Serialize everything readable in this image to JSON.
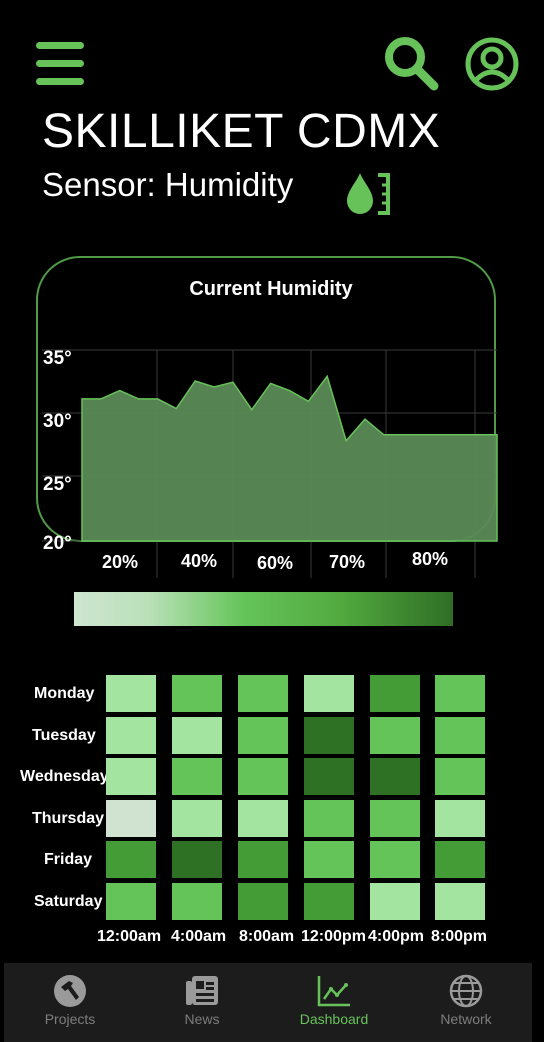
{
  "header": {
    "title": "SKILLIKET CDMX",
    "subtitle": "Sensor: Humidity",
    "menu_icon": "hamburger-icon",
    "search_icon": "search-icon",
    "profile_icon": "profile-icon",
    "sensor_icon": "humidity-drop-icon",
    "accent_color": "#67c25a"
  },
  "chart_data": {
    "type": "area",
    "title": "Current Humidity",
    "x_tick_labels": [
      "20%",
      "40%",
      "60%",
      "70%",
      "80%"
    ],
    "y_tick_labels": [
      "35°",
      "30°",
      "25°",
      "20°"
    ],
    "ylim": [
      20,
      36
    ],
    "grid": true,
    "series": [
      {
        "x": [
          0,
          1,
          2,
          3,
          4,
          5,
          6,
          7,
          8,
          9,
          10,
          11,
          12,
          13,
          14,
          15,
          16,
          17,
          18,
          19,
          20,
          21,
          22
        ],
        "values": [
          31.9,
          31.9,
          32.6,
          31.9,
          31.9,
          31.1,
          33.4,
          32.9,
          33.3,
          31.0,
          33.2,
          32.6,
          31.7,
          33.8,
          28.4,
          30.2,
          28.9,
          28.9,
          28.9,
          28.9,
          28.9,
          28.9,
          28.9
        ]
      }
    ],
    "colors": {
      "line": "#67c25a",
      "fill": "#5a8a55"
    }
  },
  "gradient_scale": {
    "colors": [
      "#cfe5d1",
      "#64c459",
      "#2f6e26"
    ]
  },
  "heatmap": {
    "days": [
      "Monday",
      "Tuesday",
      "Wednesday",
      "Thursday",
      "Friday",
      "Saturday"
    ],
    "times": [
      "12:00am",
      "4:00am",
      "8:00am",
      "12:00pm",
      "4:00pm",
      "8:00pm"
    ],
    "levels": [
      [
        1,
        2,
        2,
        1,
        3,
        2
      ],
      [
        1,
        1,
        2,
        4,
        2,
        2
      ],
      [
        1,
        2,
        2,
        4,
        4,
        2
      ],
      [
        0,
        1,
        1,
        2,
        2,
        1
      ],
      [
        3,
        4,
        3,
        2,
        2,
        3
      ],
      [
        2,
        2,
        3,
        3,
        1,
        1
      ]
    ],
    "palette": [
      "#cfe3d0",
      "#a3e4a1",
      "#64c459",
      "#439c35",
      "#2f7124"
    ]
  },
  "nav": {
    "items": [
      {
        "label": "Projects",
        "icon": "hammer-icon"
      },
      {
        "label": "News",
        "icon": "newspaper-icon"
      },
      {
        "label": "Dashboard",
        "icon": "chart-line-icon"
      },
      {
        "label": "Network",
        "icon": "globe-icon"
      }
    ],
    "active": "Dashboard"
  }
}
